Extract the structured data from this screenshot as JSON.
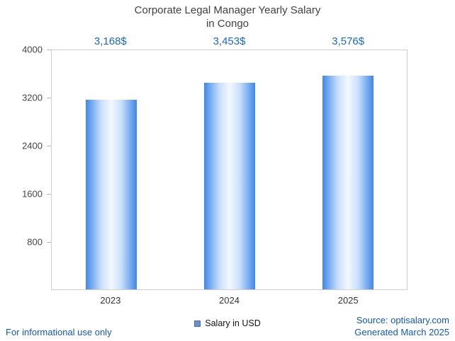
{
  "title": {
    "line1": "Corporate Legal Manager Yearly Salary",
    "line2": "in Congo"
  },
  "chart_data": {
    "type": "bar",
    "title": "Corporate Legal Manager Yearly Salary in Congo",
    "categories": [
      "2023",
      "2024",
      "2025"
    ],
    "values": [
      3168,
      3453,
      3576
    ],
    "value_labels": [
      "3,168$",
      "3,453$",
      "3,576$"
    ],
    "xlabel": "",
    "ylabel": "",
    "ylim": [
      0,
      4000
    ],
    "yticks": [
      800,
      1600,
      2400,
      3200,
      4000
    ],
    "grid": false,
    "legend_position": "bottom",
    "series_name": "Salary in USD"
  },
  "legend": {
    "label": "Salary in USD",
    "swatch_color": "#6d8fd0"
  },
  "colors": {
    "value_label_blue": "#1668d6",
    "footer_blue": "#1155cc",
    "bar_edge": "#3f87e8",
    "bar_mid": "#c8dffc",
    "bar_center": "#f3f8ff",
    "axis_gray": "#cfcfcf",
    "title_gray": "#3f3f3f"
  },
  "footer": {
    "left": "For informational use only",
    "source": "Source: optisalary.com",
    "generated": "Generated March 2025"
  }
}
